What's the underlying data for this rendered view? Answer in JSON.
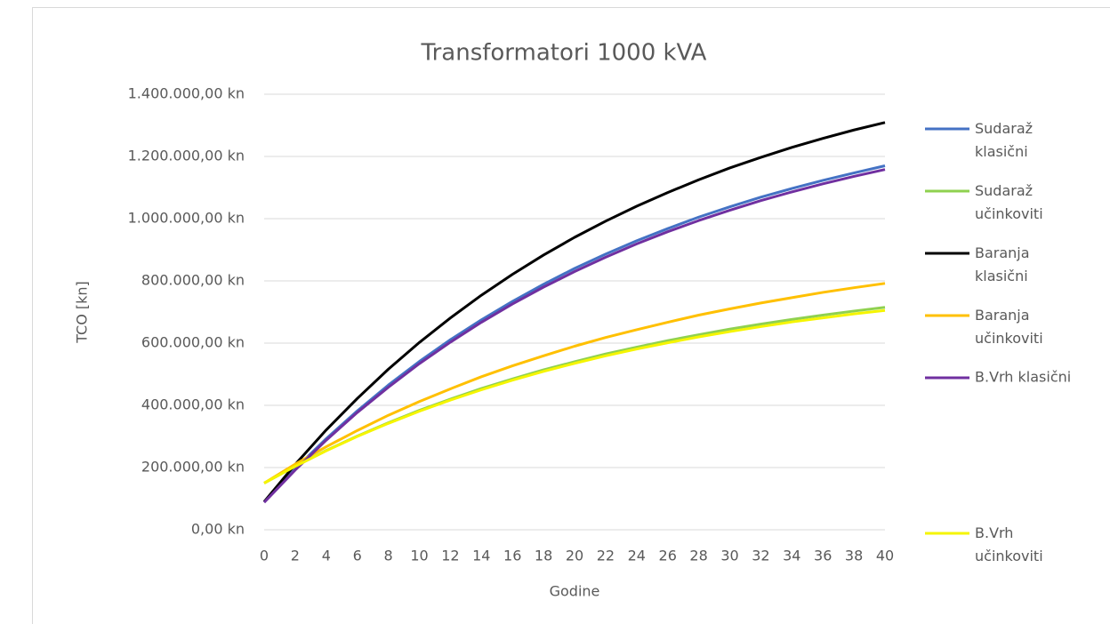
{
  "chart_data": {
    "type": "line",
    "title": "Transformatori 1000 kVA",
    "x_label": "Godine",
    "y_label": "TCO [kn]",
    "x": [
      0,
      2,
      4,
      6,
      8,
      10,
      12,
      14,
      16,
      18,
      20,
      22,
      24,
      26,
      28,
      30,
      32,
      34,
      36,
      38,
      40
    ],
    "xlim": [
      0,
      40
    ],
    "xticks": [
      0,
      2,
      4,
      6,
      8,
      10,
      12,
      14,
      16,
      18,
      20,
      22,
      24,
      26,
      28,
      30,
      32,
      34,
      36,
      38,
      40
    ],
    "ylim": [
      0,
      1400000
    ],
    "yticks": [
      {
        "value": 0,
        "label": "0,00 kn"
      },
      {
        "value": 200000,
        "label": "200.000,00 kn"
      },
      {
        "value": 400000,
        "label": "400.000,00 kn"
      },
      {
        "value": 600000,
        "label": "600.000,00 kn"
      },
      {
        "value": 800000,
        "label": "800.000,00 kn"
      },
      {
        "value": 1000000,
        "label": "1.000.000,00 kn"
      },
      {
        "value": 1200000,
        "label": "1.200.000,00 kn"
      },
      {
        "value": 1400000,
        "label": "1.400.000,00 kn"
      }
    ],
    "grid": true,
    "legend": "right",
    "series": [
      {
        "name": "Sudaraž klasični",
        "color": "#4472c4",
        "values": [
          90000,
          196000,
          293000,
          382000,
          465000,
          541000,
          611000,
          675000,
          734000,
          789000,
          840000,
          886000,
          929000,
          968000,
          1005000,
          1038000,
          1069000,
          1097000,
          1123000,
          1147000,
          1170000
        ]
      },
      {
        "name": "Sudaraž učinkoviti",
        "color": "#8fd14f",
        "values": [
          150000,
          204000,
          255000,
          301000,
          344000,
          384000,
          420000,
          454000,
          485000,
          514000,
          540000,
          565000,
          587000,
          608000,
          627000,
          645000,
          661000,
          676000,
          690000,
          703000,
          715000
        ]
      },
      {
        "name": "Baranja klasični",
        "color": "#000000",
        "values": [
          90000,
          210000,
          321000,
          422000,
          516000,
          602000,
          681000,
          754000,
          821000,
          883000,
          940000,
          992000,
          1040000,
          1084000,
          1125000,
          1163000,
          1197000,
          1229000,
          1258000,
          1285000,
          1309000
        ]
      },
      {
        "name": "Baranja učinkoviti",
        "color": "#ffc000",
        "values": [
          150000,
          211000,
          267000,
          319000,
          368000,
          412000,
          453000,
          492000,
          527000,
          559000,
          590000,
          618000,
          643000,
          667000,
          690000,
          710000,
          729000,
          746000,
          763000,
          778000,
          792000
        ]
      },
      {
        "name": "B.Vrh klasični",
        "color": "#7030a0",
        "values": [
          88000,
          192000,
          288000,
          377000,
          458000,
          534000,
          603000,
          667000,
          726000,
          780000,
          830000,
          876000,
          919000,
          958000,
          994000,
          1027000,
          1058000,
          1086000,
          1112000,
          1136000,
          1158000
        ]
      },
      {
        "name": "B.Vrh učinkoviti",
        "color": "#f5f500",
        "values": [
          150000,
          204000,
          254000,
          300000,
          342000,
          381000,
          417000,
          450000,
          481000,
          509000,
          535000,
          559000,
          581000,
          601000,
          620000,
          637000,
          653000,
          668000,
          681000,
          694000,
          705000
        ]
      }
    ]
  }
}
